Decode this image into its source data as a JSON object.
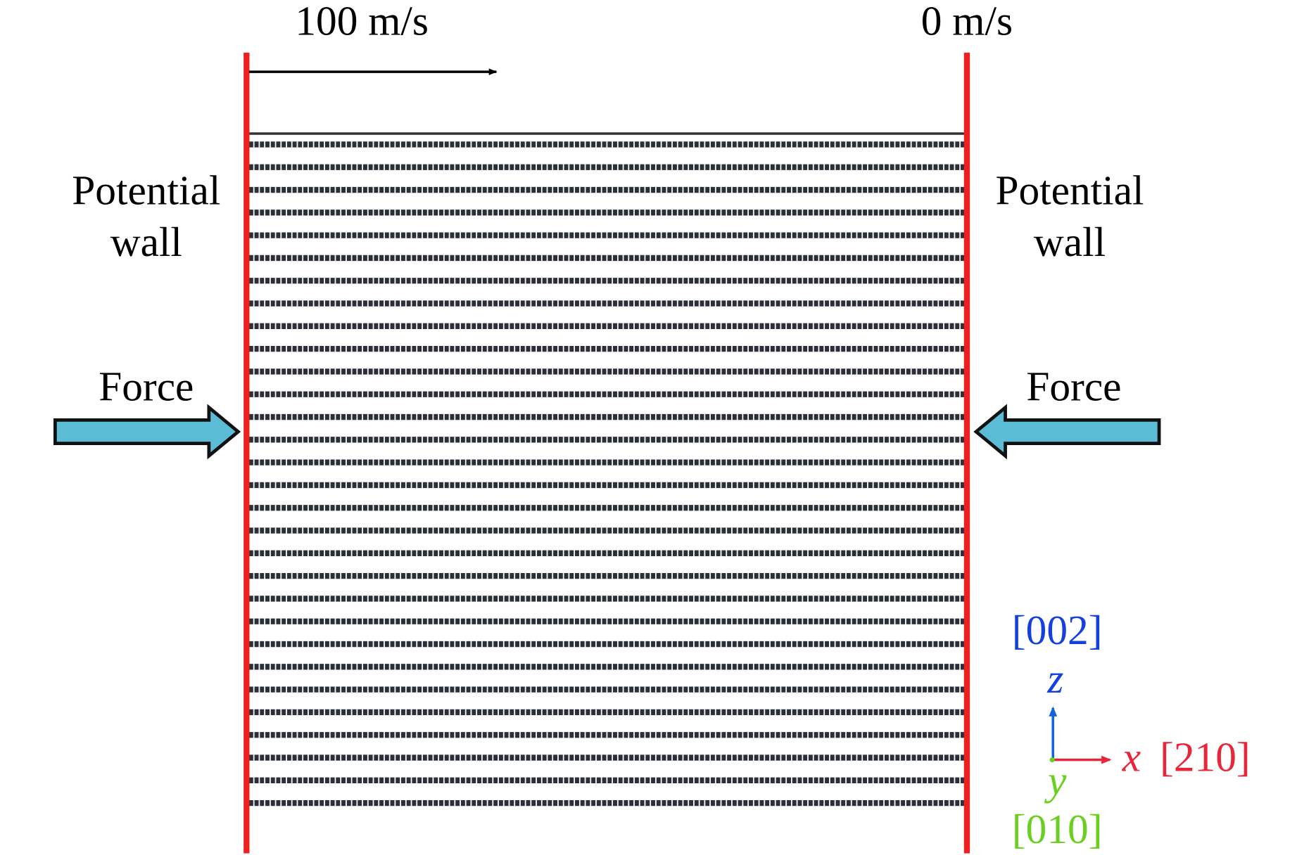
{
  "velocities": {
    "left": "100 m/s",
    "right": "0 m/s"
  },
  "walls": {
    "left": [
      "Potential",
      "wall"
    ],
    "right": [
      "Potential",
      "wall"
    ]
  },
  "forces": {
    "left": "Force",
    "right": "Force"
  },
  "axes": {
    "z_direction": "[002]",
    "z": "z",
    "x": "x",
    "x_direction": "[210]",
    "y": "y",
    "y_direction": "[010]"
  }
}
